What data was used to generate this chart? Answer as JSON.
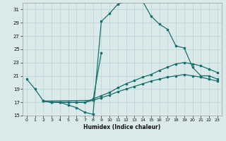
{
  "xlabel": "Humidex (Indice chaleur)",
  "bg_color": "#daeaea",
  "grid_color": "#b8d4d4",
  "line_color": "#1a6e6e",
  "xlim": [
    -0.5,
    23.5
  ],
  "ylim": [
    15,
    32
  ],
  "yticks": [
    15,
    17,
    19,
    21,
    23,
    25,
    27,
    29,
    31
  ],
  "xticks": [
    0,
    1,
    2,
    3,
    4,
    5,
    6,
    7,
    8,
    9,
    10,
    11,
    12,
    13,
    14,
    15,
    16,
    17,
    18,
    19,
    20,
    21,
    22,
    23
  ],
  "line1_x": [
    0,
    1,
    2,
    3,
    4,
    5,
    6,
    7,
    8,
    9,
    10,
    11,
    12,
    13,
    14,
    15,
    16,
    17,
    18,
    19,
    20,
    21,
    22,
    23
  ],
  "line1_y": [
    20.5,
    19.0,
    17.2,
    17.0,
    17.0,
    16.6,
    16.2,
    15.5,
    15.2,
    29.2,
    30.4,
    31.8,
    32.2,
    32.5,
    32.2,
    30.0,
    28.8,
    28.0,
    25.5,
    25.2,
    22.3,
    21.0,
    21.0,
    20.5
  ],
  "line2_x": [
    2,
    3,
    4,
    5,
    6,
    7,
    8,
    9,
    10,
    11,
    12,
    13,
    14,
    15,
    16,
    17,
    18,
    19,
    20,
    21,
    22,
    23
  ],
  "line2_y": [
    17.2,
    17.0,
    17.0,
    17.0,
    17.0,
    17.0,
    17.5,
    18.0,
    18.5,
    19.2,
    19.8,
    20.3,
    20.8,
    21.2,
    21.8,
    22.3,
    22.8,
    23.0,
    22.8,
    22.5,
    22.0,
    21.5
  ],
  "line3_x": [
    2,
    3,
    4,
    5,
    6,
    7,
    8,
    9,
    10,
    11,
    12,
    13,
    14,
    15,
    16,
    17,
    18,
    19,
    20,
    21,
    22,
    23
  ],
  "line3_y": [
    17.2,
    17.0,
    17.0,
    17.0,
    17.0,
    17.0,
    17.3,
    17.7,
    18.1,
    18.6,
    19.0,
    19.4,
    19.8,
    20.2,
    20.5,
    20.8,
    21.0,
    21.2,
    21.0,
    20.8,
    20.5,
    20.2
  ],
  "line4_x": [
    2,
    8,
    9
  ],
  "line4_y": [
    17.2,
    17.3,
    24.5
  ]
}
